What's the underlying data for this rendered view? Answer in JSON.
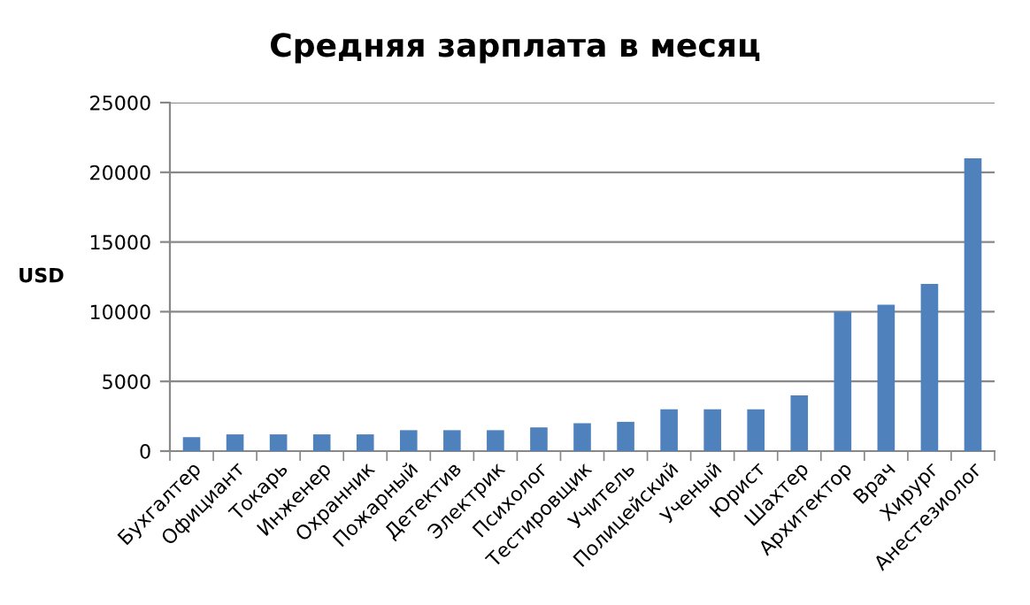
{
  "chart_data": {
    "type": "bar",
    "title": "Средняя зарплата в месяц",
    "ylabel": "USD",
    "categories": [
      "Бухгалтер",
      "Официант",
      "Токарь",
      "Инженер",
      "Охранник",
      "Пожарный",
      "Детектив",
      "Электрик",
      "Психолог",
      "Тестировщик",
      "Учитель",
      "Полицейский",
      "Ученый",
      "Юрист",
      "Шахтер",
      "Архитектор",
      "Врач",
      "Хирург",
      "Анестезиолог"
    ],
    "values": [
      1000,
      1200,
      1200,
      1200,
      1200,
      1500,
      1500,
      1500,
      1700,
      2000,
      2100,
      3000,
      3000,
      3000,
      4000,
      10000,
      10500,
      12000,
      21000
    ],
    "color": "#4f81bd",
    "ylim": [
      0,
      25000
    ],
    "yticks": [
      0,
      5000,
      10000,
      15000,
      20000,
      25000
    ],
    "grid": "y",
    "legend": false
  }
}
